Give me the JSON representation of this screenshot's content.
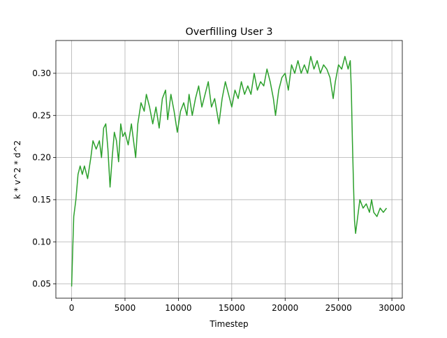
{
  "chart_data": {
    "type": "line",
    "title": "Overfilling User 3",
    "x_label": "Timestep",
    "y_label": "k * v^2 * d^2",
    "x": [
      0,
      100,
      200,
      400,
      600,
      800,
      1000,
      1200,
      1500,
      1800,
      2000,
      2300,
      2600,
      2800,
      3000,
      3200,
      3400,
      3600,
      3800,
      4000,
      4200,
      4400,
      4600,
      4800,
      5000,
      5300,
      5600,
      5800,
      6000,
      6200,
      6500,
      6800,
      7000,
      7300,
      7600,
      7900,
      8200,
      8500,
      8800,
      9000,
      9300,
      9600,
      9900,
      10200,
      10500,
      10800,
      11000,
      11300,
      11600,
      11900,
      12200,
      12500,
      12800,
      13100,
      13400,
      13800,
      14100,
      14400,
      14700,
      15000,
      15300,
      15600,
      15900,
      16200,
      16500,
      16800,
      17100,
      17400,
      17700,
      18000,
      18300,
      18600,
      18900,
      19100,
      19400,
      19700,
      20000,
      20300,
      20600,
      20900,
      21200,
      21500,
      21800,
      22100,
      22400,
      22700,
      23000,
      23300,
      23600,
      23900,
      24200,
      24500,
      24700,
      25000,
      25300,
      25600,
      25900,
      26100,
      26200,
      26300,
      26400,
      26500,
      26600,
      26800,
      27000,
      27300,
      27600,
      27900,
      28100,
      28300,
      28600,
      28900,
      29200,
      29500
    ],
    "series": [
      {
        "name": "User 3",
        "color": "#2ca02c",
        "values": [
          0.047,
          0.09,
          0.13,
          0.15,
          0.18,
          0.19,
          0.18,
          0.19,
          0.175,
          0.2,
          0.22,
          0.21,
          0.22,
          0.2,
          0.235,
          0.24,
          0.21,
          0.165,
          0.2,
          0.23,
          0.22,
          0.195,
          0.24,
          0.225,
          0.23,
          0.215,
          0.24,
          0.22,
          0.2,
          0.24,
          0.265,
          0.255,
          0.275,
          0.26,
          0.24,
          0.26,
          0.235,
          0.27,
          0.28,
          0.245,
          0.275,
          0.255,
          0.23,
          0.255,
          0.265,
          0.25,
          0.275,
          0.25,
          0.27,
          0.285,
          0.26,
          0.275,
          0.29,
          0.26,
          0.27,
          0.24,
          0.27,
          0.29,
          0.275,
          0.26,
          0.28,
          0.27,
          0.29,
          0.275,
          0.285,
          0.275,
          0.3,
          0.28,
          0.29,
          0.285,
          0.305,
          0.29,
          0.27,
          0.25,
          0.28,
          0.295,
          0.3,
          0.28,
          0.31,
          0.3,
          0.315,
          0.3,
          0.31,
          0.3,
          0.32,
          0.305,
          0.315,
          0.3,
          0.31,
          0.305,
          0.295,
          0.27,
          0.29,
          0.31,
          0.305,
          0.32,
          0.305,
          0.315,
          0.28,
          0.22,
          0.17,
          0.125,
          0.11,
          0.13,
          0.15,
          0.14,
          0.145,
          0.135,
          0.15,
          0.135,
          0.13,
          0.14,
          0.135,
          0.14
        ]
      }
    ],
    "xlim": [
      -1475,
      30975
    ],
    "ylim": [
      0.0331,
      0.3389
    ],
    "xticks": [
      0,
      5000,
      10000,
      15000,
      20000,
      25000,
      30000
    ],
    "yticks": [
      {
        "value": 0.05,
        "label": "0.05"
      },
      {
        "value": 0.1,
        "label": "0.10"
      },
      {
        "value": 0.15,
        "label": "0.15"
      },
      {
        "value": 0.2,
        "label": "0.20"
      },
      {
        "value": 0.25,
        "label": "0.25"
      },
      {
        "value": 0.3,
        "label": "0.30"
      }
    ],
    "grid": true
  }
}
